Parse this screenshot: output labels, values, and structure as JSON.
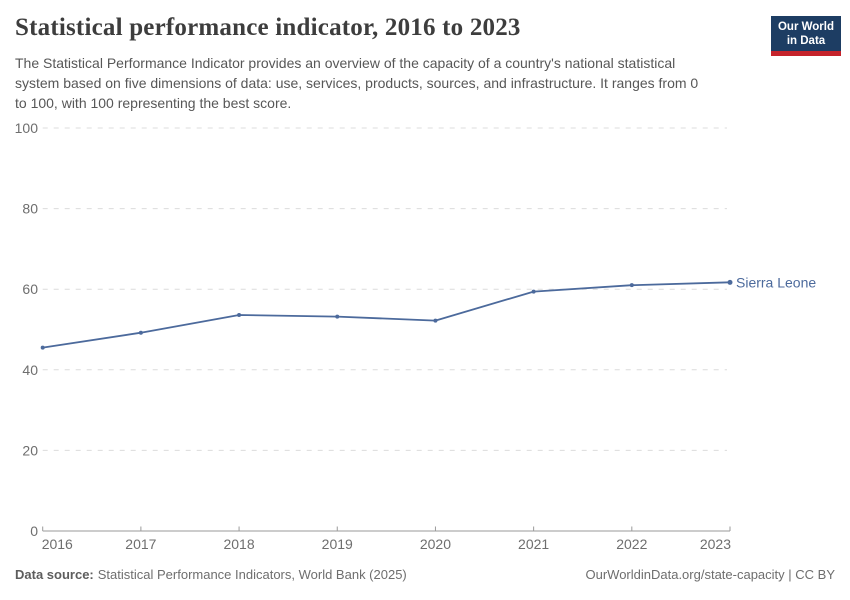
{
  "header": {
    "title": "Statistical performance indicator, 2016 to 2023",
    "subtitle": "The Statistical Performance Indicator provides an overview of the capacity of a country's national statistical system based on five dimensions of data: use, services, products, sources, and infrastructure. It ranges from 0 to 100, with 100 representing the best score.",
    "subtitle_lines": [
      "The Statistical Performance Indicator provides an overview of the capacity of a country's national statistical",
      "system based on five dimensions of data: use, services, products, sources, and infrastructure. It ranges from 0",
      "to 100, with 100 representing the best score."
    ],
    "logo": {
      "line1": "Our World",
      "line2": "in Data",
      "bg_color": "#1d3d63",
      "accent_color": "#c5232b"
    }
  },
  "chart_data": {
    "type": "line",
    "title": "Statistical performance indicator, 2016 to 2023",
    "x": [
      2016,
      2017,
      2018,
      2019,
      2020,
      2021,
      2022,
      2023
    ],
    "series": [
      {
        "name": "Sierra Leone",
        "values": [
          45.5,
          49.2,
          53.6,
          53.2,
          52.2,
          59.4,
          61.0,
          61.7
        ],
        "color": "#4c6a9c"
      }
    ],
    "xlabel": "",
    "ylabel": "",
    "ylim": [
      0,
      100
    ],
    "yticks": [
      0,
      20,
      40,
      60,
      80,
      100
    ],
    "grid": "horizontal-dashed",
    "grid_color": "#dcdcdc",
    "axis_color": "#9a9a9a",
    "tick_label_color": "#6e6e6e",
    "legend_position": "end-of-line-label"
  },
  "footer": {
    "source_label": "Data source:",
    "source_text": "Statistical Performance Indicators, World Bank (2025)",
    "attribution": "OurWorldinData.org/state-capacity | CC BY"
  }
}
